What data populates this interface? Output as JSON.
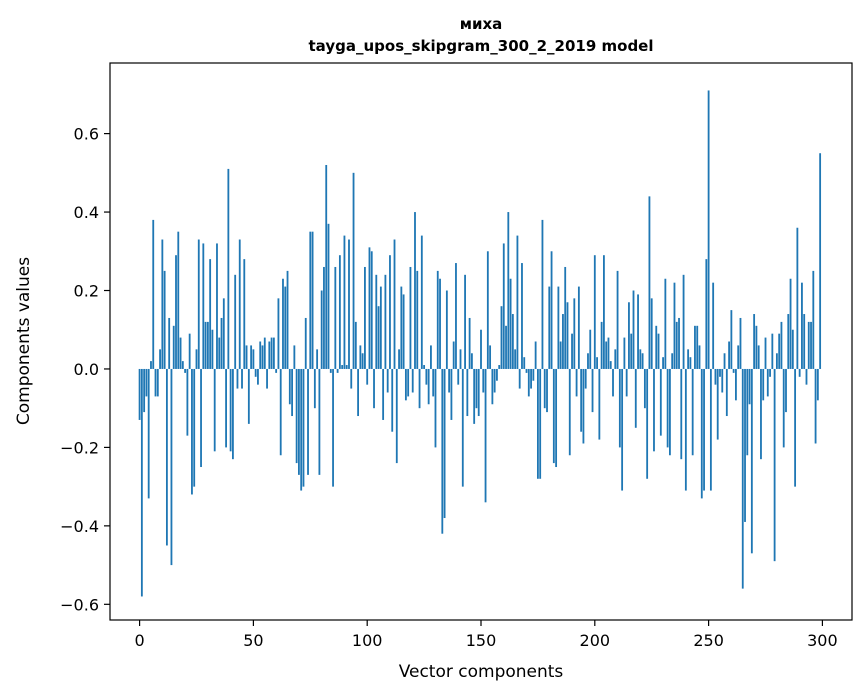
{
  "chart_data": {
    "type": "bar",
    "title": "миха",
    "subtitle": "tayga_upos_skipgram_300_2_2019 model",
    "xlabel": "Vector components",
    "ylabel": "Components values",
    "xlim": [
      -13,
      313
    ],
    "ylim": [
      -0.64,
      0.78
    ],
    "xticks": [
      0,
      50,
      100,
      150,
      200,
      250,
      300
    ],
    "xtick_labels": [
      "0",
      "50",
      "100",
      "150",
      "200",
      "250",
      "300"
    ],
    "yticks": [
      -0.6,
      -0.4,
      -0.2,
      0.0,
      0.2,
      0.4,
      0.6
    ],
    "ytick_labels": [
      "−0.6",
      "−0.4",
      "−0.2",
      "0.0",
      "0.2",
      "0.4",
      "0.6"
    ],
    "grid": false,
    "bar_color": "#1f77b4",
    "values": [
      -0.13,
      -0.58,
      -0.11,
      -0.07,
      -0.33,
      0.02,
      0.38,
      -0.07,
      -0.07,
      0.05,
      0.33,
      0.25,
      -0.45,
      0.13,
      -0.5,
      0.11,
      0.29,
      0.35,
      0.08,
      0.02,
      -0.01,
      -0.17,
      0.09,
      -0.32,
      -0.3,
      0.05,
      0.33,
      -0.25,
      0.32,
      0.12,
      0.12,
      0.28,
      0.1,
      -0.21,
      0.32,
      0.08,
      0.13,
      0.18,
      -0.2,
      0.51,
      -0.21,
      -0.23,
      0.24,
      -0.05,
      0.33,
      -0.05,
      0.28,
      0.06,
      -0.14,
      0.06,
      0.05,
      -0.02,
      -0.04,
      0.07,
      0.06,
      0.08,
      -0.05,
      0.07,
      0.08,
      0.08,
      -0.01,
      0.18,
      -0.22,
      0.23,
      0.21,
      0.25,
      -0.09,
      -0.12,
      0.06,
      -0.24,
      -0.27,
      -0.31,
      -0.3,
      0.13,
      -0.27,
      0.35,
      0.35,
      -0.1,
      0.05,
      -0.27,
      0.2,
      0.26,
      0.52,
      0.37,
      -0.01,
      -0.3,
      0.26,
      -0.01,
      0.29,
      0.01,
      0.34,
      0.01,
      0.33,
      -0.05,
      0.5,
      0.12,
      -0.12,
      0.06,
      0.04,
      0.26,
      -0.04,
      0.31,
      0.3,
      -0.1,
      0.24,
      0.16,
      0.21,
      -0.13,
      0.24,
      -0.06,
      0.29,
      -0.16,
      0.33,
      -0.24,
      0.05,
      0.21,
      0.19,
      -0.08,
      -0.07,
      0.26,
      -0.06,
      0.4,
      0.25,
      -0.1,
      0.34,
      0.01,
      -0.04,
      -0.09,
      0.06,
      -0.07,
      -0.2,
      0.25,
      0.23,
      -0.42,
      -0.38,
      0.2,
      -0.06,
      -0.13,
      0.07,
      0.27,
      -0.04,
      0.05,
      -0.3,
      0.24,
      -0.12,
      0.13,
      0.04,
      -0.14,
      -0.1,
      -0.12,
      0.1,
      -0.06,
      -0.34,
      0.3,
      0.06,
      -0.09,
      -0.06,
      -0.03,
      0.01,
      0.16,
      0.32,
      0.11,
      0.4,
      0.23,
      0.14,
      0.05,
      0.34,
      -0.05,
      0.27,
      0.03,
      -0.01,
      -0.07,
      -0.05,
      -0.03,
      0.07,
      -0.28,
      -0.28,
      0.38,
      -0.1,
      -0.11,
      0.21,
      0.3,
      -0.24,
      -0.25,
      0.21,
      0.07,
      0.14,
      0.26,
      0.17,
      -0.22,
      0.09,
      0.18,
      -0.07,
      0.21,
      -0.16,
      -0.19,
      -0.05,
      0.04,
      0.1,
      -0.11,
      0.29,
      0.03,
      -0.18,
      0.12,
      0.29,
      0.07,
      0.08,
      0.02,
      -0.07,
      0.05,
      0.25,
      -0.2,
      -0.31,
      0.08,
      -0.07,
      0.17,
      0.09,
      0.2,
      -0.15,
      0.19,
      0.05,
      0.04,
      -0.1,
      -0.28,
      0.44,
      0.18,
      -0.21,
      0.11,
      0.09,
      -0.17,
      0.03,
      0.23,
      -0.2,
      -0.22,
      0.04,
      0.22,
      0.12,
      0.13,
      -0.23,
      0.24,
      -0.31,
      0.05,
      0.03,
      -0.22,
      0.11,
      0.11,
      0.06,
      -0.33,
      -0.31,
      0.28,
      0.71,
      -0.31,
      0.22,
      -0.04,
      -0.18,
      -0.02,
      -0.06,
      0.04,
      -0.12,
      0.07,
      0.15,
      -0.01,
      -0.08,
      0.06,
      0.13,
      -0.56,
      -0.39,
      -0.22,
      -0.09,
      -0.47,
      0.14,
      0.11,
      0.06,
      -0.23,
      -0.08,
      0.08,
      -0.07,
      -0.02,
      0.09,
      -0.49,
      0.04,
      0.09,
      0.12,
      -0.2,
      -0.11,
      0.14,
      0.23,
      0.1,
      -0.3,
      0.36,
      -0.02,
      0.22,
      0.14,
      -0.04,
      0.12,
      0.12,
      0.25,
      -0.19,
      -0.08,
      0.55
    ]
  }
}
